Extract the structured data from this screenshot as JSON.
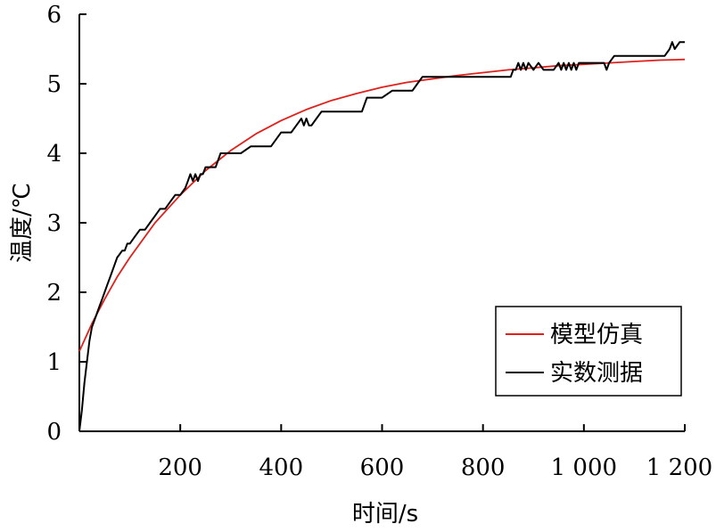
{
  "chart_data": {
    "type": "line",
    "xlabel": "时间/s",
    "ylabel": "温度/℃",
    "xlim": [
      0,
      1200
    ],
    "ylim": [
      0,
      6
    ],
    "x_ticks": [
      200,
      400,
      600,
      800,
      1000,
      1200
    ],
    "x_tick_labels": [
      "200",
      "400",
      "600",
      "800",
      "1 000",
      "1 200"
    ],
    "y_ticks": [
      0,
      1,
      2,
      3,
      4,
      5,
      6
    ],
    "y_tick_labels": [
      "0",
      "1",
      "2",
      "3",
      "4",
      "5",
      "6"
    ],
    "grid": false,
    "legend_position": "bottom-right",
    "series": [
      {
        "name": "模型仿真",
        "color": "#e0201b",
        "x": [
          0,
          25,
          50,
          75,
          100,
          150,
          200,
          250,
          300,
          350,
          400,
          450,
          500,
          550,
          600,
          650,
          700,
          750,
          800,
          850,
          900,
          950,
          1000,
          1050,
          1100,
          1150,
          1200
        ],
        "y": [
          1.15,
          1.55,
          1.9,
          2.22,
          2.5,
          3.0,
          3.4,
          3.75,
          4.04,
          4.28,
          4.47,
          4.63,
          4.76,
          4.86,
          4.95,
          5.02,
          5.07,
          5.12,
          5.16,
          5.2,
          5.23,
          5.26,
          5.28,
          5.3,
          5.32,
          5.34,
          5.35
        ]
      },
      {
        "name": "实数测据",
        "color": "#000000",
        "x": [
          0,
          5,
          10,
          15,
          20,
          25,
          30,
          35,
          40,
          45,
          50,
          55,
          60,
          65,
          70,
          75,
          80,
          85,
          90,
          95,
          100,
          110,
          120,
          130,
          140,
          150,
          160,
          170,
          180,
          190,
          200,
          210,
          215,
          220,
          225,
          230,
          235,
          240,
          245,
          250,
          260,
          270,
          280,
          300,
          320,
          340,
          360,
          380,
          400,
          420,
          430,
          440,
          445,
          450,
          455,
          460,
          470,
          480,
          500,
          520,
          540,
          560,
          570,
          580,
          600,
          620,
          640,
          660,
          670,
          680,
          700,
          720,
          740,
          760,
          780,
          800,
          810,
          820,
          840,
          855,
          860,
          865,
          870,
          875,
          880,
          885,
          890,
          900,
          910,
          920,
          930,
          940,
          950,
          955,
          960,
          965,
          970,
          975,
          980,
          985,
          990,
          1000,
          1020,
          1040,
          1045,
          1050,
          1060,
          1080,
          1100,
          1120,
          1140,
          1160,
          1170,
          1175,
          1180,
          1190,
          1200
        ],
        "y": [
          0,
          0.3,
          0.7,
          1.0,
          1.3,
          1.5,
          1.6,
          1.7,
          1.8,
          1.9,
          2.0,
          2.1,
          2.2,
          2.3,
          2.4,
          2.5,
          2.55,
          2.6,
          2.6,
          2.7,
          2.7,
          2.8,
          2.9,
          2.9,
          3.0,
          3.1,
          3.2,
          3.2,
          3.3,
          3.4,
          3.4,
          3.5,
          3.6,
          3.7,
          3.6,
          3.7,
          3.6,
          3.7,
          3.7,
          3.8,
          3.8,
          3.8,
          4.0,
          4.0,
          4.0,
          4.1,
          4.1,
          4.1,
          4.3,
          4.3,
          4.4,
          4.5,
          4.4,
          4.5,
          4.4,
          4.4,
          4.5,
          4.6,
          4.6,
          4.6,
          4.6,
          4.6,
          4.8,
          4.8,
          4.8,
          4.9,
          4.9,
          4.9,
          5.0,
          5.1,
          5.1,
          5.1,
          5.1,
          5.1,
          5.1,
          5.1,
          5.1,
          5.1,
          5.1,
          5.1,
          5.2,
          5.2,
          5.3,
          5.2,
          5.3,
          5.2,
          5.3,
          5.2,
          5.3,
          5.2,
          5.2,
          5.2,
          5.3,
          5.2,
          5.3,
          5.2,
          5.3,
          5.2,
          5.3,
          5.2,
          5.3,
          5.3,
          5.3,
          5.3,
          5.2,
          5.3,
          5.4,
          5.4,
          5.4,
          5.4,
          5.4,
          5.4,
          5.5,
          5.6,
          5.5,
          5.6,
          5.6
        ]
      }
    ]
  }
}
